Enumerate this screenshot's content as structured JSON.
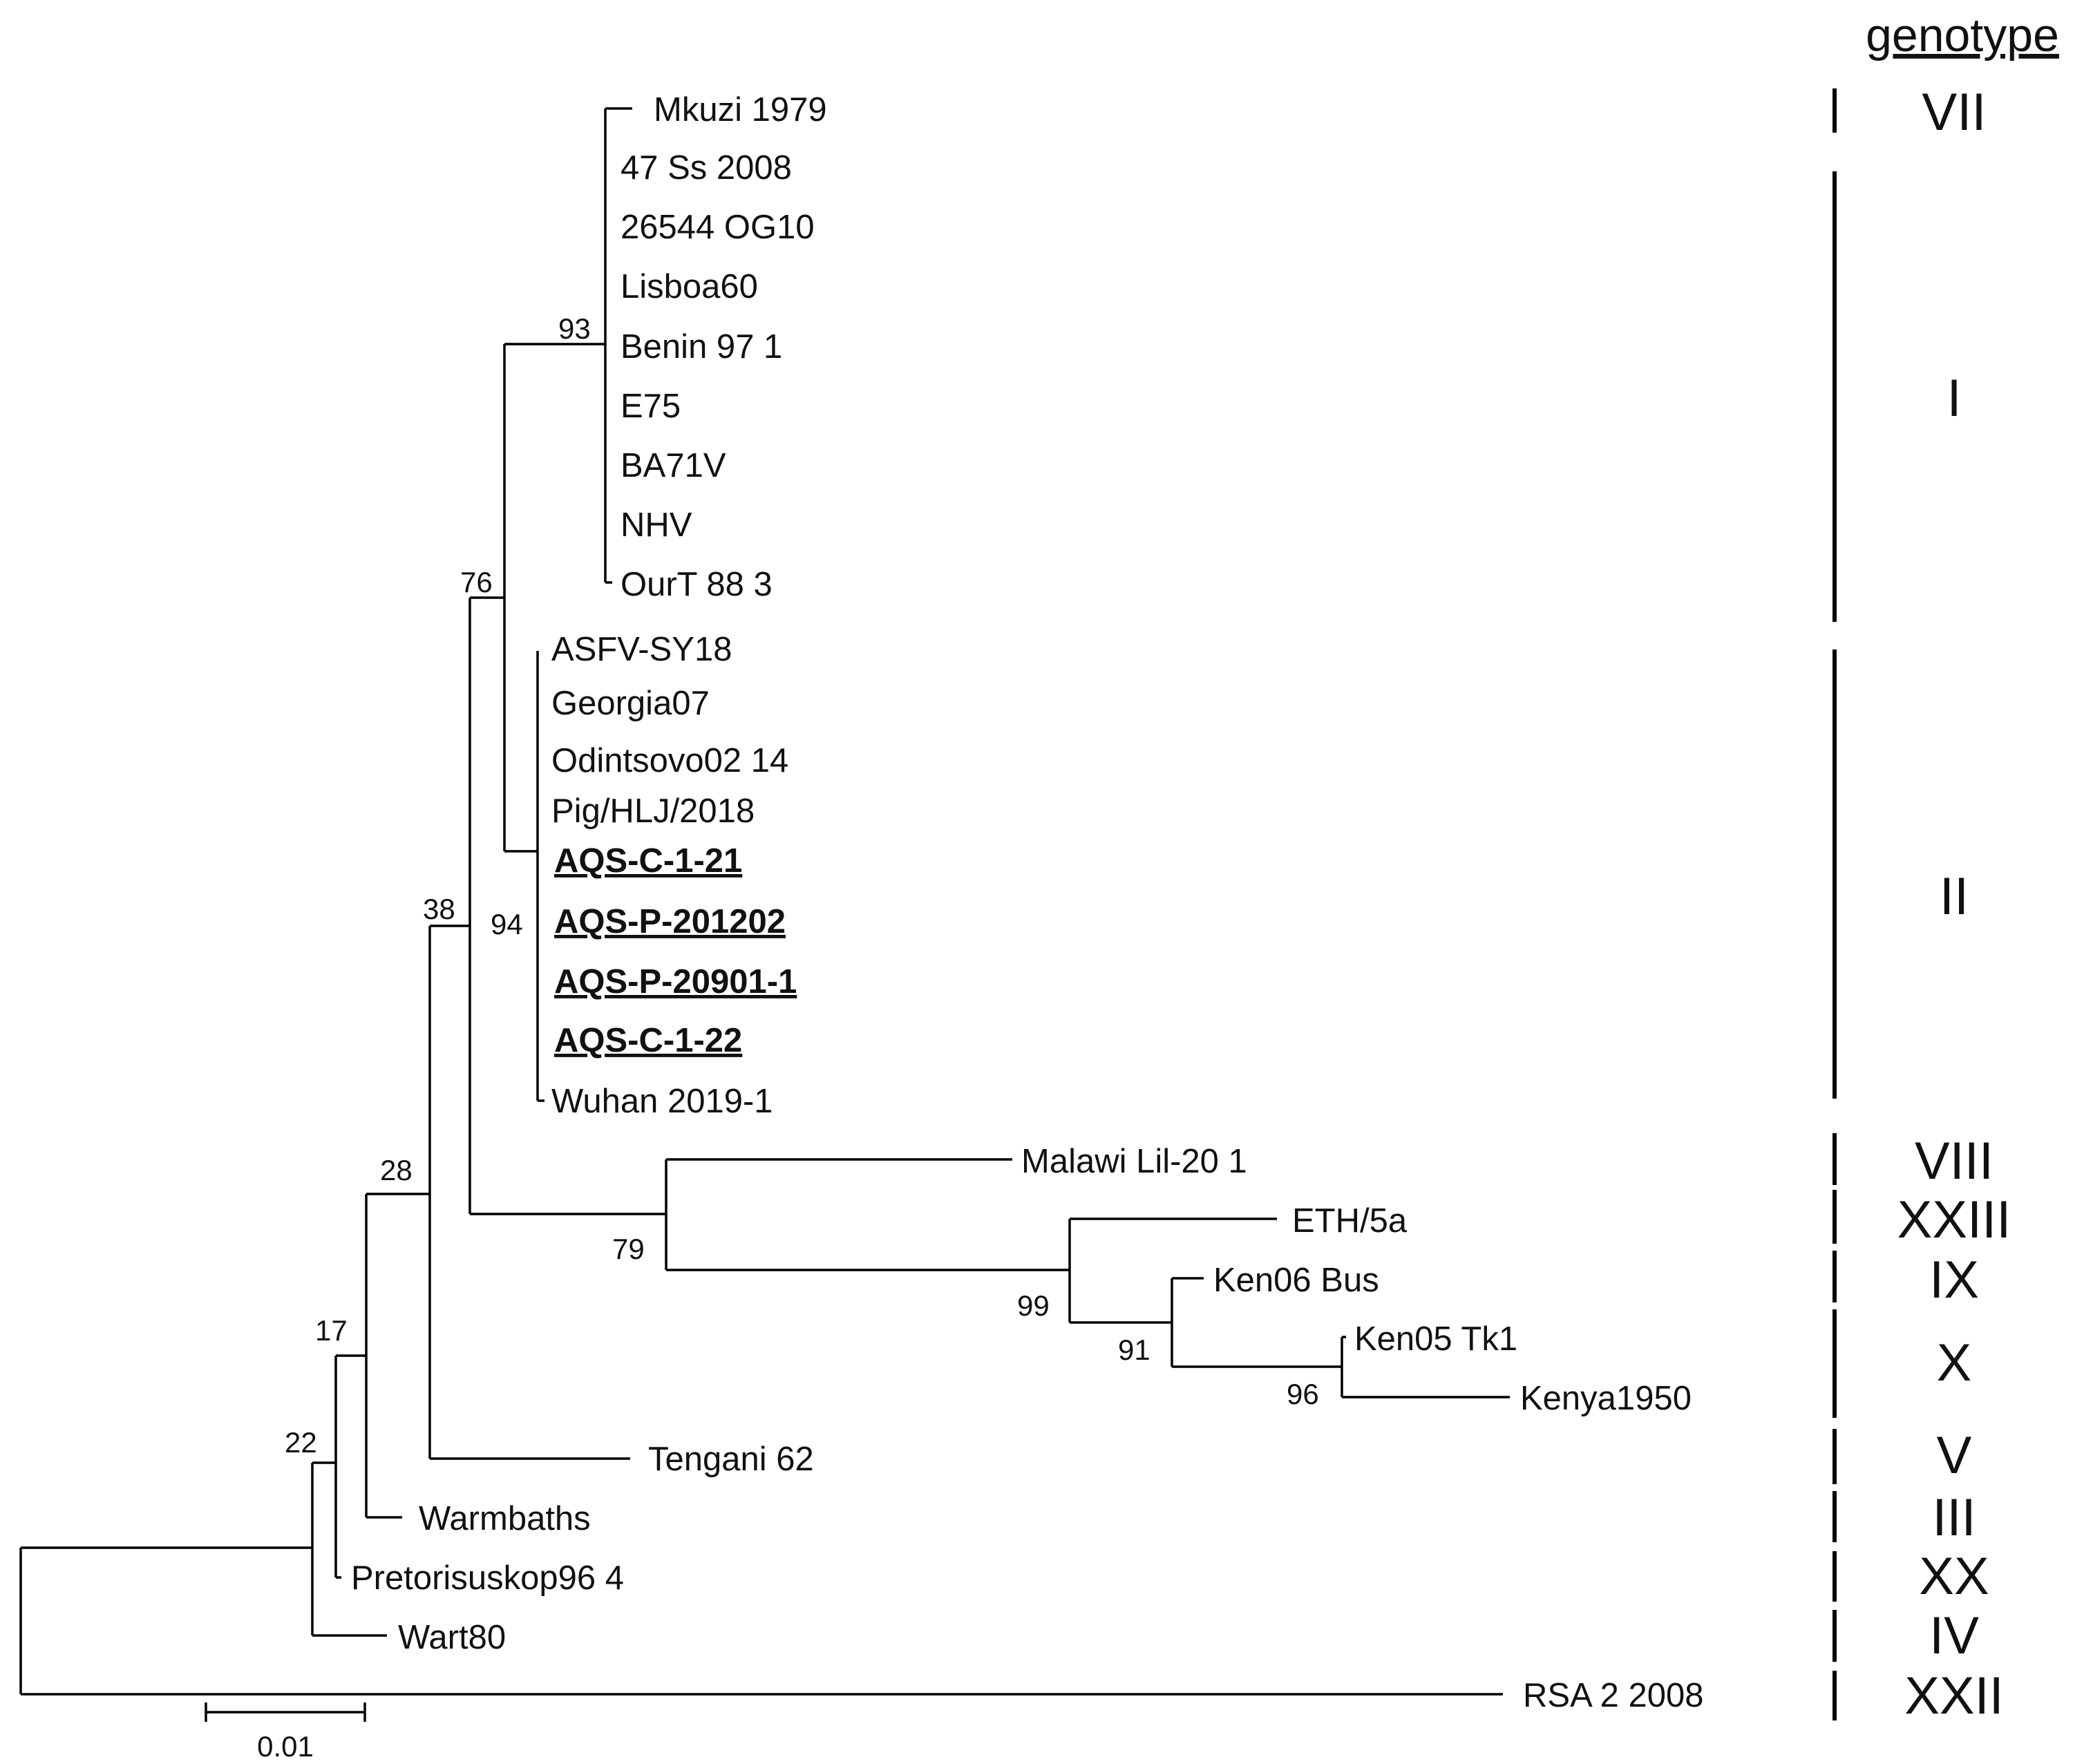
{
  "genotype_header": "genotype",
  "leaves": [
    {
      "id": "mkuzi",
      "label": "Mkuzi 1979"
    },
    {
      "id": "ss47",
      "label": "47 Ss 2008"
    },
    {
      "id": "og10",
      "label": "26544 OG10"
    },
    {
      "id": "lisboa",
      "label": "Lisboa60"
    },
    {
      "id": "benin",
      "label": "Benin 97 1"
    },
    {
      "id": "e75",
      "label": "E75"
    },
    {
      "id": "ba71v",
      "label": "BA71V"
    },
    {
      "id": "nhv",
      "label": "NHV"
    },
    {
      "id": "ourt",
      "label": "OurT 88 3"
    },
    {
      "id": "sy18",
      "label": "ASFV-SY18"
    },
    {
      "id": "georgia",
      "label": "Georgia07"
    },
    {
      "id": "odintsovo",
      "label": "Odintsovo02 14"
    },
    {
      "id": "hlj",
      "label": "Pig/HLJ/2018"
    },
    {
      "id": "aqsc121",
      "label": "AQS-C-1-21",
      "highlight": true
    },
    {
      "id": "aqsp201202",
      "label": "AQS-P-201202",
      "highlight": true
    },
    {
      "id": "aqsp20901",
      "label": "AQS-P-20901-1",
      "highlight": true
    },
    {
      "id": "aqsc122",
      "label": "AQS-C-1-22",
      "highlight": true
    },
    {
      "id": "wuhan",
      "label": "Wuhan 2019-1"
    },
    {
      "id": "malawi",
      "label": "Malawi Lil-20 1"
    },
    {
      "id": "eth",
      "label": "ETH/5a"
    },
    {
      "id": "ken06",
      "label": "Ken06 Bus"
    },
    {
      "id": "ken05",
      "label": "Ken05 Tk1"
    },
    {
      "id": "kenya1950",
      "label": "Kenya1950"
    },
    {
      "id": "tengani",
      "label": "Tengani 62"
    },
    {
      "id": "warmbaths",
      "label": "Warmbaths"
    },
    {
      "id": "pretorisuskop",
      "label": "Pretorisuskop96 4"
    },
    {
      "id": "wart80",
      "label": "Wart80"
    },
    {
      "id": "rsa",
      "label": "RSA 2 2008"
    }
  ],
  "bootstrap_values": [
    {
      "id": "n93",
      "value": "93"
    },
    {
      "id": "n76",
      "value": "76"
    },
    {
      "id": "n94",
      "value": "94"
    },
    {
      "id": "n38",
      "value": "38"
    },
    {
      "id": "n28",
      "value": "28"
    },
    {
      "id": "n79",
      "value": "79"
    },
    {
      "id": "n99",
      "value": "99"
    },
    {
      "id": "n91",
      "value": "91"
    },
    {
      "id": "n96",
      "value": "96"
    },
    {
      "id": "n17",
      "value": "17"
    },
    {
      "id": "n22",
      "value": "22"
    }
  ],
  "genotypes": [
    {
      "id": "gVII",
      "label": "VII"
    },
    {
      "id": "gI",
      "label": "I"
    },
    {
      "id": "gII",
      "label": "II"
    },
    {
      "id": "gVIII",
      "label": "VIII"
    },
    {
      "id": "gXXIII",
      "label": "XXIII"
    },
    {
      "id": "gIX",
      "label": "IX"
    },
    {
      "id": "gX",
      "label": "X"
    },
    {
      "id": "gV",
      "label": "V"
    },
    {
      "id": "gIII",
      "label": "III"
    },
    {
      "id": "gXX",
      "label": "XX"
    },
    {
      "id": "gIV",
      "label": "IV"
    },
    {
      "id": "gXXII",
      "label": "XXII"
    }
  ],
  "scale_bar": {
    "label": "0.01",
    "value": 0.01
  }
}
